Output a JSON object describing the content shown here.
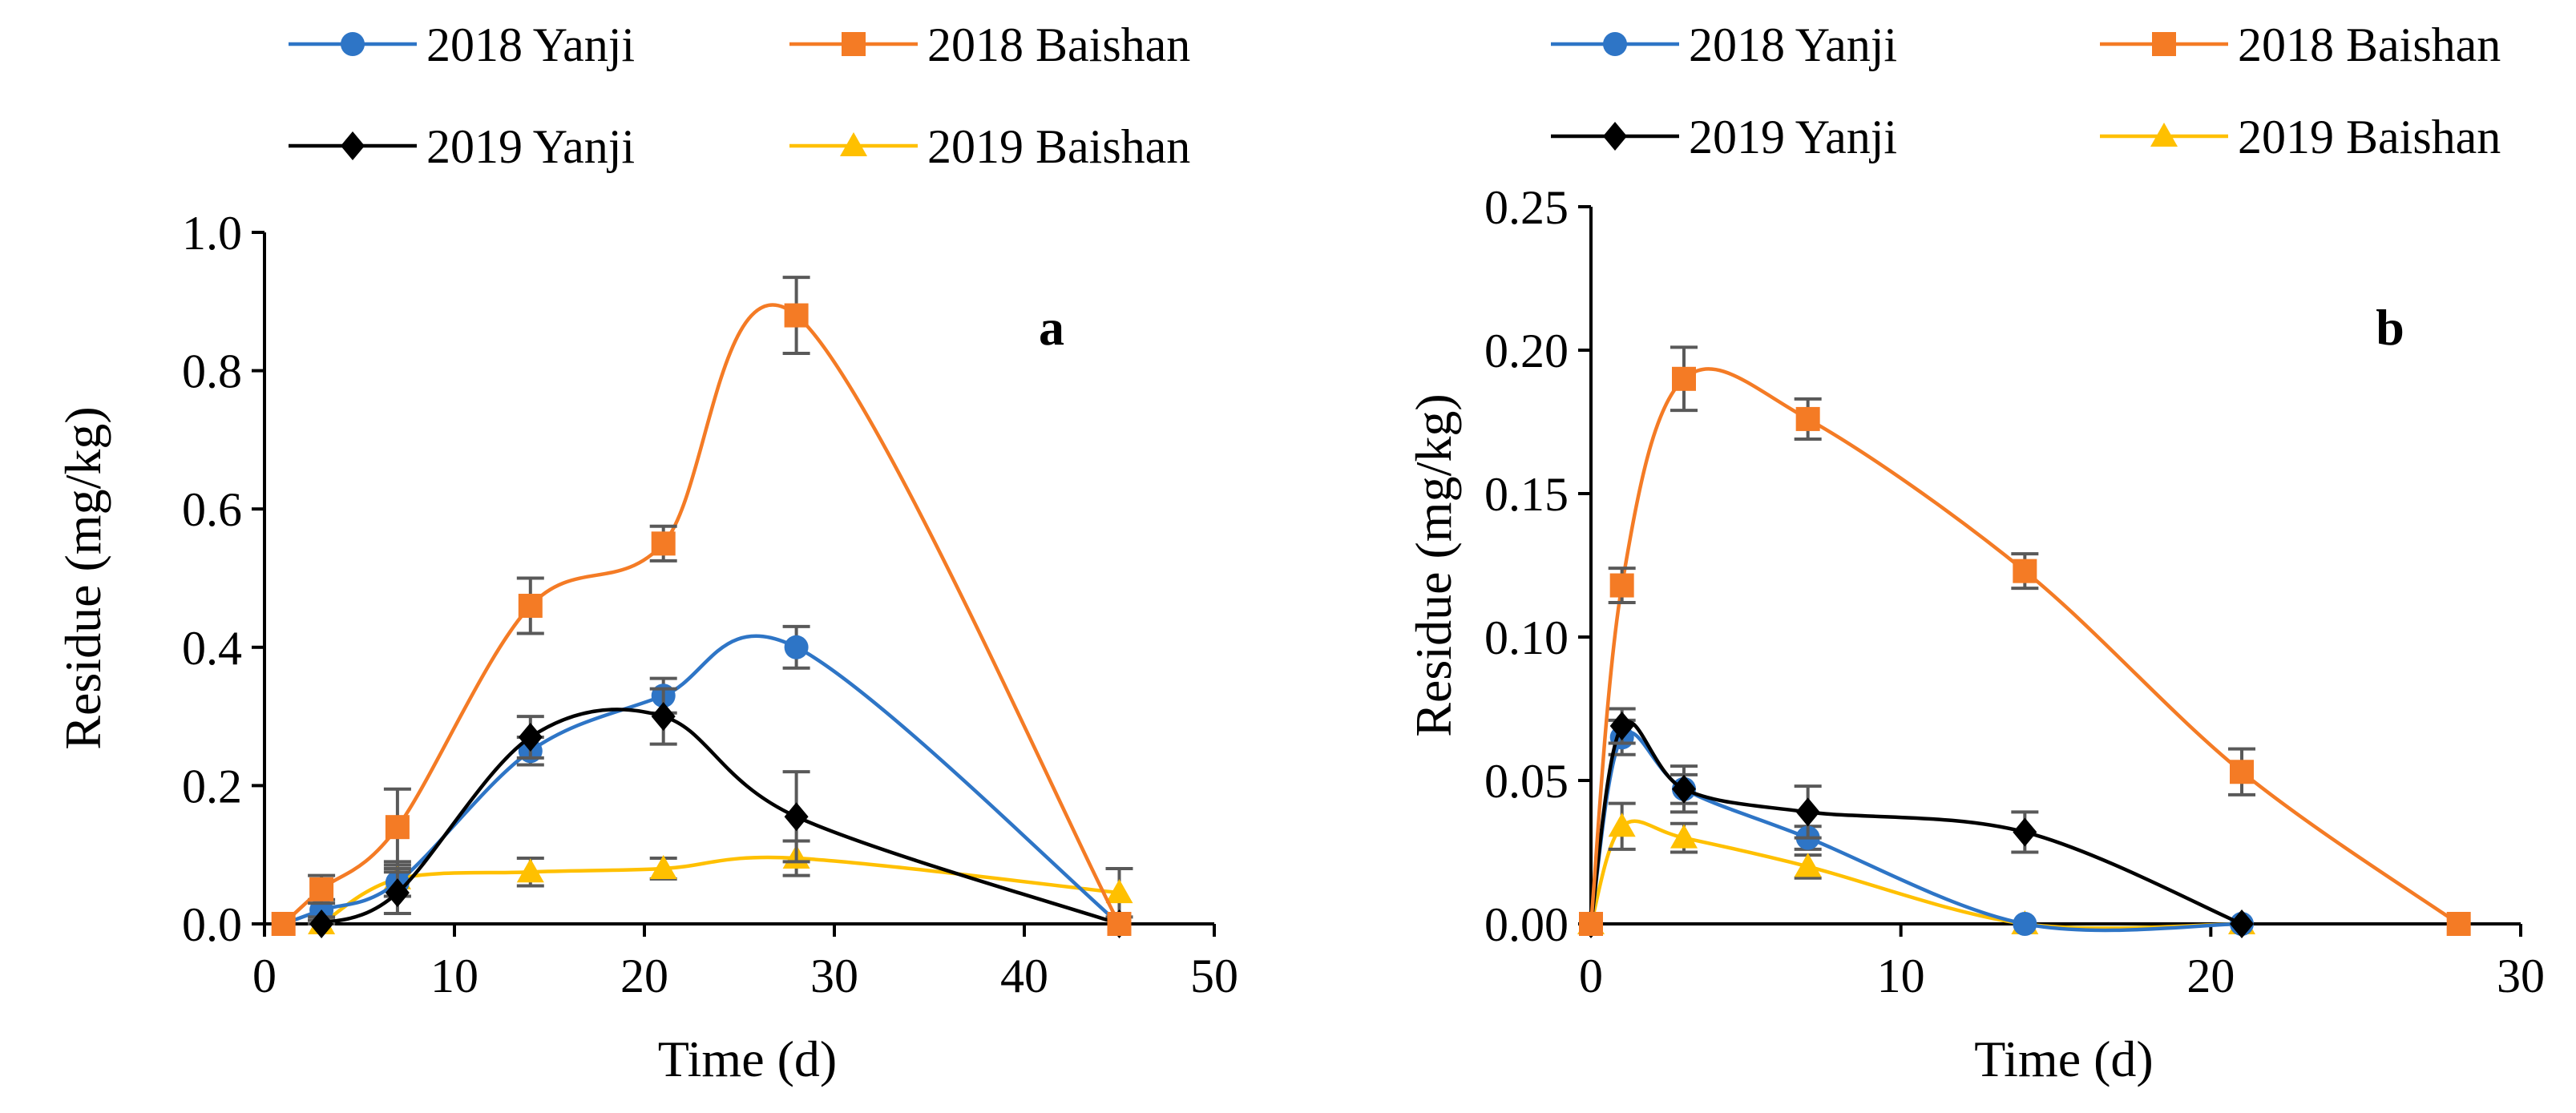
{
  "legend_labels": [
    "2018 Yanji",
    "2018 Baishan",
    "2019 Yanji",
    "2019 Baishan"
  ],
  "series_colors": {
    "2018 Yanji": "#2E75C6",
    "2018 Baishan": "#F47B25",
    "2019 Yanji": "#000000",
    "2019 Baishan": "#FFC000"
  },
  "series_markers": {
    "2018 Yanji": "circle",
    "2018 Baishan": "square",
    "2019 Yanji": "diamond",
    "2019 Baishan": "triangle"
  },
  "error_bar_color": "#595959",
  "chart_data": [
    {
      "type": "line",
      "panel_label": "a",
      "xlabel": "Time (d)",
      "ylabel": "Residue (mg/kg)",
      "xlim": [
        0,
        50
      ],
      "ylim": [
        0,
        1.0
      ],
      "xticks": [
        0,
        10,
        20,
        30,
        40,
        50
      ],
      "xtick_labels": [
        "0",
        "10",
        "20",
        "30",
        "40",
        "50"
      ],
      "yticks": [
        0,
        0.2,
        0.4,
        0.6,
        0.8,
        1.0
      ],
      "ytick_labels": [
        "0.0",
        "0.2",
        "0.4",
        "0.6",
        "0.8",
        "1.0"
      ],
      "series": [
        {
          "name": "2018 Yanji",
          "x": [
            1,
            3,
            7,
            14,
            21,
            28,
            45
          ],
          "y": [
            0,
            0.02,
            0.06,
            0.25,
            0.33,
            0.4,
            0
          ],
          "err": [
            0,
            0.015,
            0.02,
            0.02,
            0.025,
            0.03,
            0
          ]
        },
        {
          "name": "2018 Baishan",
          "x": [
            1,
            3,
            7,
            14,
            21,
            28,
            45
          ],
          "y": [
            0,
            0.05,
            0.14,
            0.46,
            0.55,
            0.88,
            0
          ],
          "err": [
            0,
            0.02,
            0.055,
            0.04,
            0.025,
            0.055,
            0
          ]
        },
        {
          "name": "2019 Yanji",
          "x": [
            3,
            7,
            14,
            21,
            28,
            45
          ],
          "y": [
            0,
            0.045,
            0.27,
            0.3,
            0.155,
            0
          ],
          "err": [
            0.01,
            0.03,
            0.03,
            0.04,
            0.065,
            0
          ]
        },
        {
          "name": "2019 Baishan",
          "x": [
            3,
            7,
            14,
            21,
            28,
            45
          ],
          "y": [
            0,
            0.065,
            0.075,
            0.08,
            0.095,
            0.045
          ],
          "err": [
            0.005,
            0.025,
            0.02,
            0.015,
            0.025,
            0.035
          ]
        }
      ]
    },
    {
      "type": "line",
      "panel_label": "b",
      "xlabel": "Time (d)",
      "ylabel": "Residue (mg/kg)",
      "xlim": [
        0,
        30
      ],
      "ylim": [
        0,
        0.25
      ],
      "xticks": [
        0,
        10,
        20,
        30
      ],
      "xtick_labels": [
        "0",
        "10",
        "20",
        "30"
      ],
      "yticks": [
        0,
        0.05,
        0.1,
        0.15,
        0.2,
        0.25
      ],
      "ytick_labels": [
        "0.00",
        "0.05",
        "0.10",
        "0.15",
        "0.20",
        "0.25"
      ],
      "series": [
        {
          "name": "2018 Yanji",
          "x": [
            0,
            1,
            3,
            7,
            14,
            21
          ],
          "y": [
            0,
            0.065,
            0.047,
            0.03,
            0,
            0
          ],
          "err": [
            0,
            0.006,
            0.005,
            0.004,
            0,
            0
          ]
        },
        {
          "name": "2018 Baishan",
          "x": [
            0,
            1,
            3,
            7,
            14,
            21,
            28
          ],
          "y": [
            0,
            0.118,
            0.19,
            0.176,
            0.123,
            0.053,
            0
          ],
          "err": [
            0,
            0.006,
            0.011,
            0.007,
            0.006,
            0.008,
            0
          ]
        },
        {
          "name": "2019 Yanji",
          "x": [
            0,
            1,
            3,
            7,
            14,
            21
          ],
          "y": [
            0,
            0.069,
            0.047,
            0.039,
            0.032,
            0
          ],
          "err": [
            0,
            0.006,
            0.008,
            0.009,
            0.007,
            0
          ]
        },
        {
          "name": "2019 Baishan",
          "x": [
            0,
            1,
            3,
            7,
            14,
            21
          ],
          "y": [
            0,
            0.034,
            0.03,
            0.02,
            0,
            0
          ],
          "err": [
            0,
            0.008,
            0.005,
            0.004,
            0,
            0
          ]
        }
      ]
    }
  ]
}
